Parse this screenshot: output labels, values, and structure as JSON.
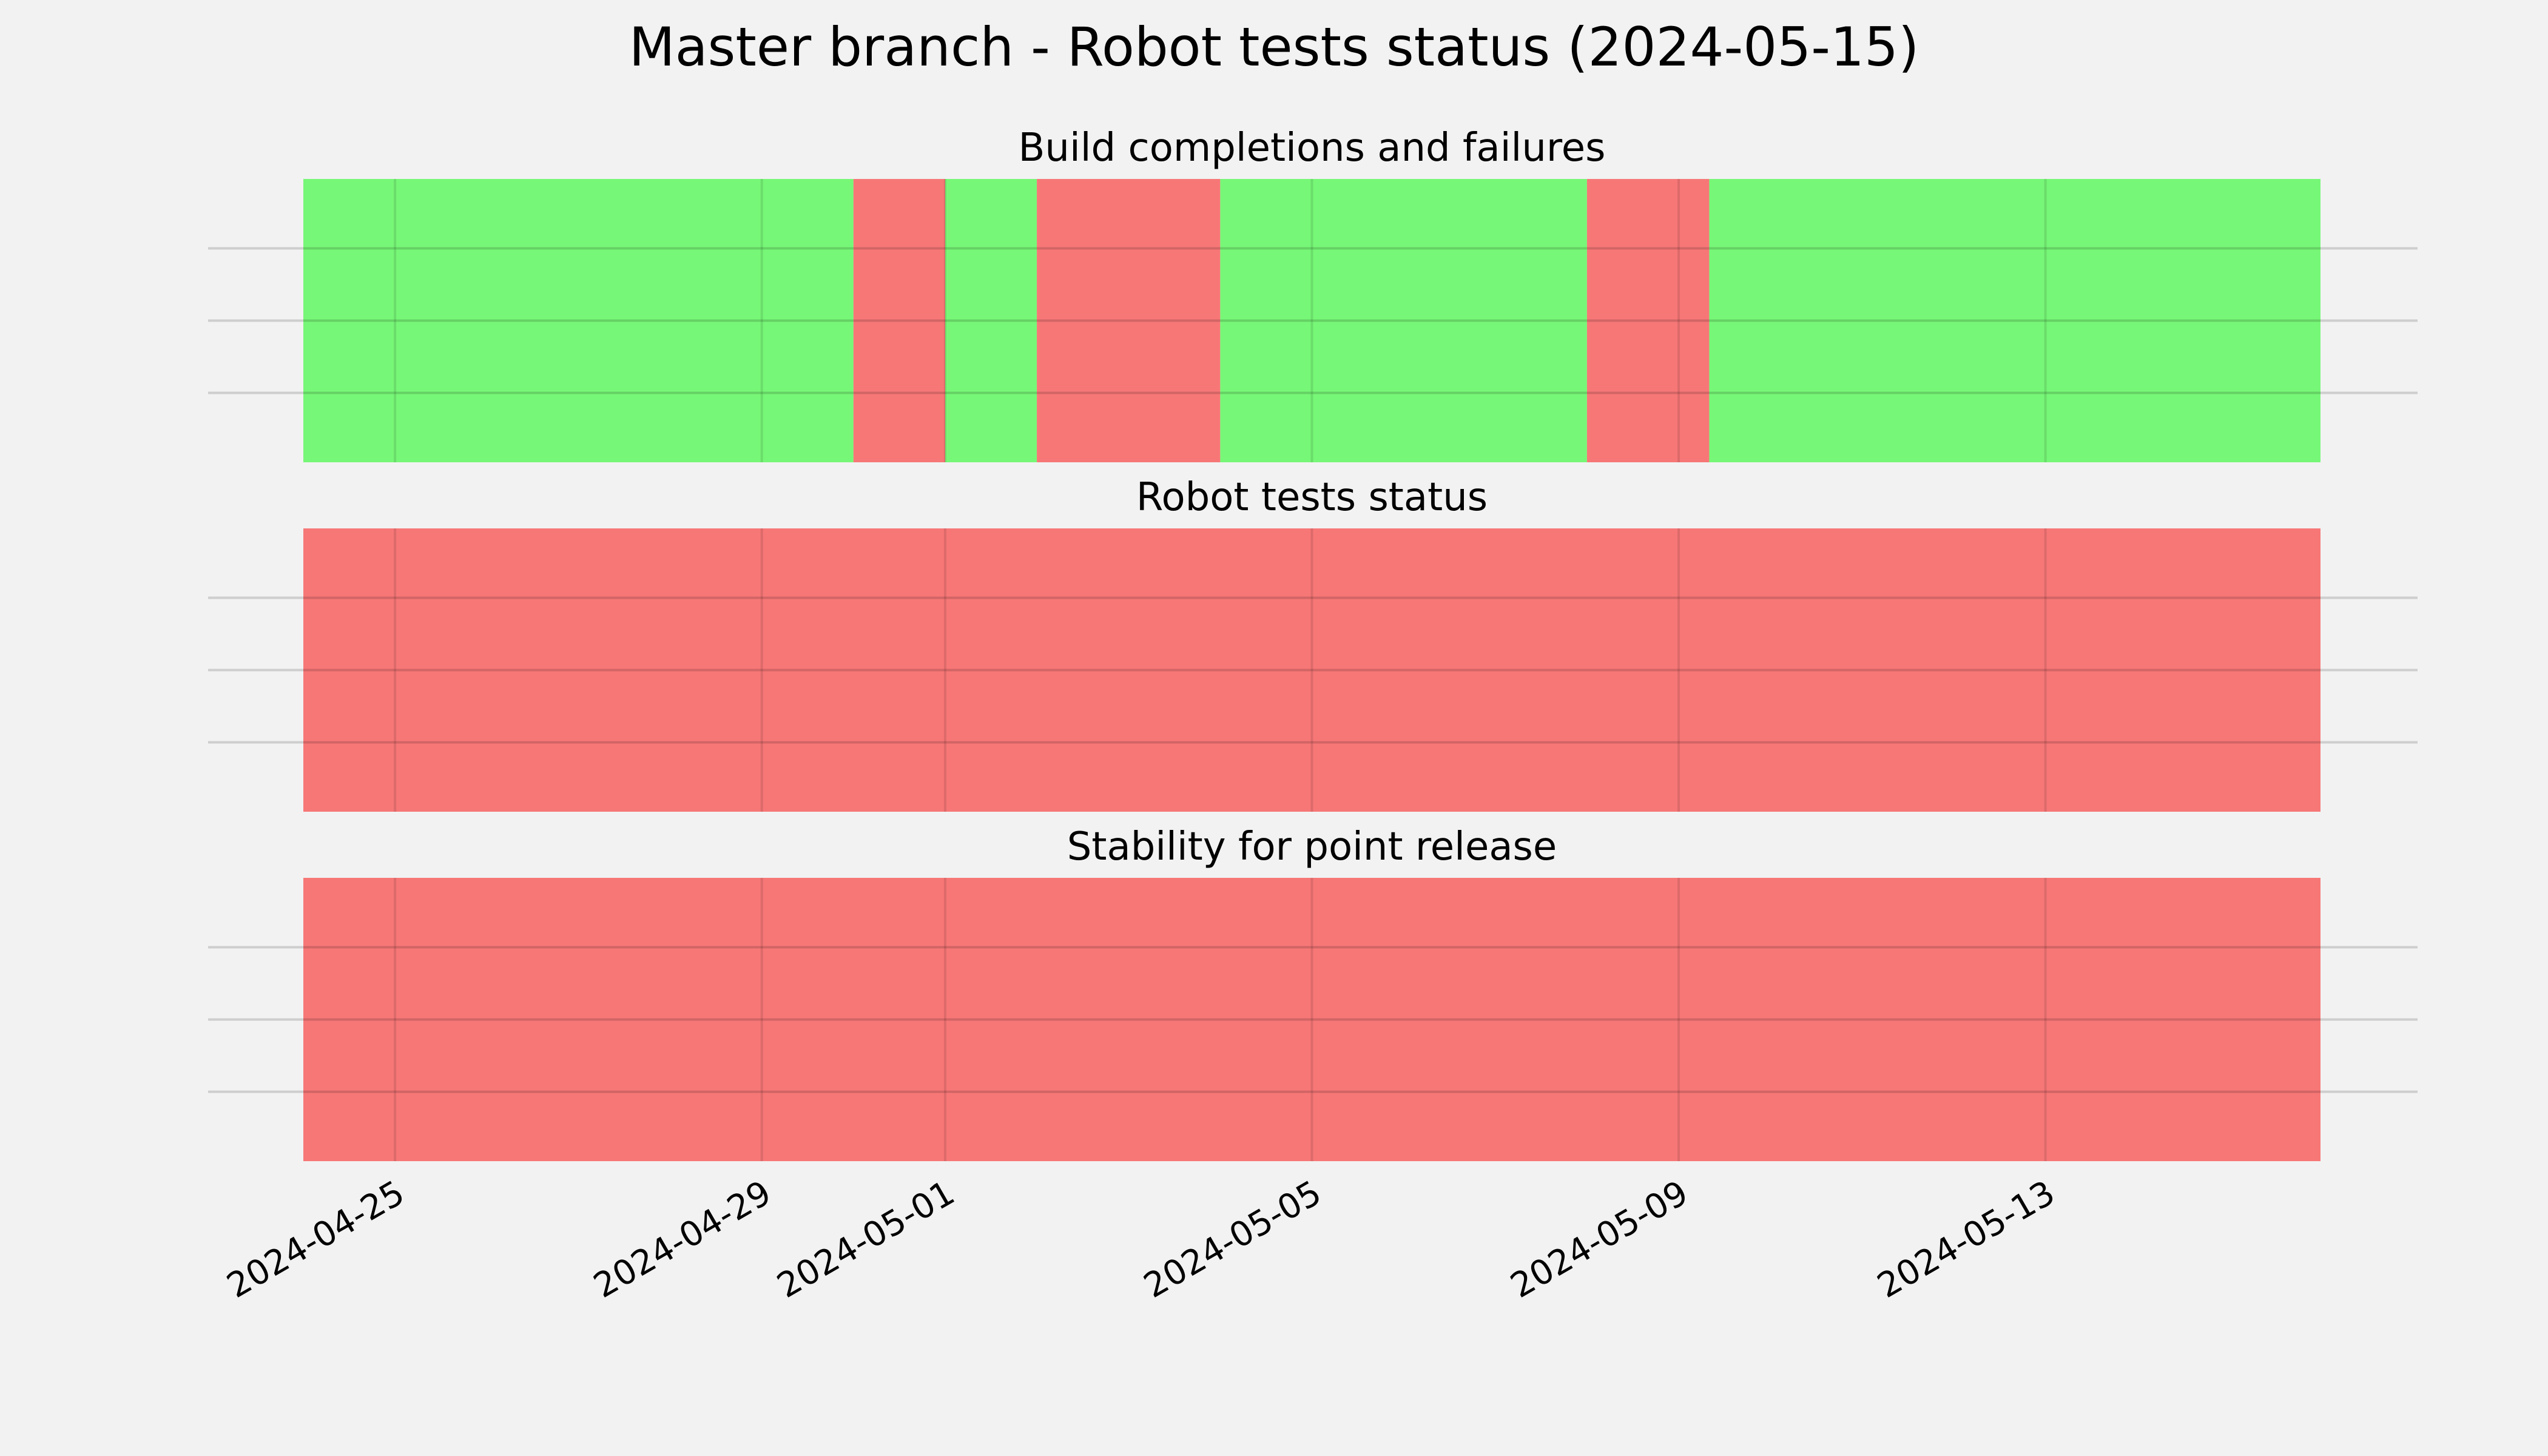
{
  "title": "Master branch - Robot tests status (2024-05-15)",
  "chart_data": {
    "type": "timeline",
    "title": "Master branch - Robot tests status (2024-05-15)",
    "xlim": [
      "2024-04-24",
      "2024-05-16"
    ],
    "x_ticks": [
      "2024-04-25",
      "2024-04-29",
      "2024-05-01",
      "2024-05-05",
      "2024-05-09",
      "2024-05-13"
    ],
    "grid": true,
    "colors": {
      "pass": "#77f777",
      "fail": "#f77777"
    },
    "panels": [
      {
        "title": "Build completions and failures",
        "segments": [
          {
            "start": "2024-04-24",
            "end": "2024-04-30",
            "status": "pass"
          },
          {
            "start": "2024-04-30",
            "end": "2024-05-01",
            "status": "fail"
          },
          {
            "start": "2024-05-01",
            "end": "2024-05-02",
            "status": "pass"
          },
          {
            "start": "2024-05-02",
            "end": "2024-05-04",
            "status": "fail"
          },
          {
            "start": "2024-05-04",
            "end": "2024-05-08",
            "status": "pass"
          },
          {
            "start": "2024-05-08",
            "end": "2024-05-09 08:00",
            "status": "fail"
          },
          {
            "start": "2024-05-09 08:00",
            "end": "2024-05-16",
            "status": "pass"
          }
        ]
      },
      {
        "title": "Robot tests status",
        "segments": [
          {
            "start": "2024-04-24",
            "end": "2024-05-16",
            "status": "fail"
          }
        ]
      },
      {
        "title": "Stability for point release",
        "segments": [
          {
            "start": "2024-04-24",
            "end": "2024-05-16",
            "status": "fail"
          }
        ]
      }
    ]
  }
}
